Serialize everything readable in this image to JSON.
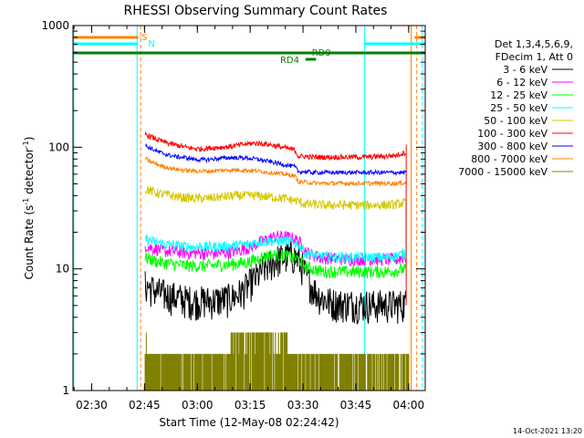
{
  "chart_data": {
    "type": "line",
    "title": "RHESSI Observing Summary Count Rates",
    "xlabel": "Start Time (12-May-08 02:24:42)",
    "ylabel_main": "Count Rate (s",
    "ylabel_sup1": "-1",
    "ylabel_mid": " detector",
    "ylabel_sup2": "-1",
    "ylabel_end": ")",
    "y_scale": "log",
    "ylim": [
      1,
      1000
    ],
    "xlim_minutes": [
      0,
      100
    ],
    "x_ticks": [
      {
        "minute": 5.3,
        "label": "02:30"
      },
      {
        "minute": 20.3,
        "label": "02:45"
      },
      {
        "minute": 35.3,
        "label": "03:00"
      },
      {
        "minute": 50.3,
        "label": "03:15"
      },
      {
        "minute": 65.3,
        "label": "03:30"
      },
      {
        "minute": 80.3,
        "label": "03:45"
      },
      {
        "minute": 95.3,
        "label": "04:00"
      }
    ],
    "y_ticks": [
      {
        "value": 1,
        "label": "1"
      },
      {
        "value": 10,
        "label": "10"
      },
      {
        "value": 100,
        "label": "100"
      },
      {
        "value": 1000,
        "label": "1000"
      }
    ],
    "legend_header": [
      "Det 1,3,4,5,6,9,",
      "FDecim 1, Att 0"
    ],
    "legend_position": "right",
    "series": [
      {
        "name": "3 - 6 keV",
        "color": "#000000",
        "x": [
          20,
          22,
          24,
          26,
          28,
          30,
          32,
          34,
          36,
          38,
          40,
          42,
          44,
          46,
          48,
          50,
          52,
          54,
          56,
          58,
          60,
          62,
          64,
          66,
          68,
          70,
          72,
          74,
          76,
          78,
          80,
          82,
          84,
          86,
          88,
          90,
          92,
          94
        ],
        "values": [
          7.5,
          7,
          6.5,
          6.2,
          6,
          5.8,
          5.6,
          5.5,
          5.5,
          5.5,
          5.5,
          5.6,
          5.7,
          6,
          6.5,
          7.5,
          8.5,
          10,
          11,
          12,
          12.5,
          13,
          12,
          9,
          7,
          6,
          5.5,
          5.3,
          5.2,
          5.2,
          5.2,
          5.2,
          5.1,
          5.1,
          5.1,
          5.1,
          5.1,
          5.2
        ]
      },
      {
        "name": "6 - 12 keV",
        "color": "#ff00ff",
        "x": [
          20,
          22,
          24,
          26,
          28,
          30,
          32,
          34,
          36,
          38,
          40,
          42,
          44,
          46,
          48,
          50,
          52,
          54,
          56,
          58,
          60,
          62,
          64,
          66,
          68,
          70,
          72,
          74,
          76,
          78,
          80,
          82,
          84,
          86,
          88,
          90,
          92,
          94
        ],
        "values": [
          16,
          15,
          14.5,
          14,
          14,
          13.8,
          13.6,
          13.5,
          13.5,
          13.4,
          13.4,
          13.5,
          13.6,
          14,
          14.5,
          15,
          16,
          17,
          18,
          18.5,
          18.5,
          18,
          17,
          14,
          13,
          12.5,
          12.3,
          12.2,
          12.1,
          12,
          12,
          12,
          12,
          12,
          12,
          12,
          12,
          12.5
        ]
      },
      {
        "name": "12 - 25 keV",
        "color": "#00ff00",
        "x": [
          20,
          22,
          24,
          26,
          28,
          30,
          32,
          34,
          36,
          38,
          40,
          42,
          44,
          46,
          48,
          50,
          52,
          54,
          56,
          58,
          60,
          62,
          64,
          66,
          68,
          70,
          72,
          74,
          76,
          78,
          80,
          82,
          84,
          86,
          88,
          90,
          92,
          94
        ],
        "values": [
          12.5,
          12,
          11.5,
          11.2,
          11,
          10.8,
          10.7,
          10.6,
          10.6,
          10.6,
          10.7,
          10.8,
          10.9,
          11,
          11.2,
          11.5,
          12,
          12.5,
          13,
          13,
          13,
          12.5,
          12,
          10.5,
          10,
          9.7,
          9.5,
          9.5,
          9.5,
          9.5,
          9.5,
          9.5,
          9.5,
          9.5,
          9.5,
          9.6,
          9.7,
          10
        ]
      },
      {
        "name": "25 - 50 keV",
        "color": "#00ffff",
        "x": [
          20,
          22,
          24,
          26,
          28,
          30,
          32,
          34,
          36,
          38,
          40,
          42,
          44,
          46,
          48,
          50,
          52,
          54,
          56,
          58,
          60,
          62,
          64,
          66,
          68,
          70,
          72,
          74,
          76,
          78,
          80,
          82,
          84,
          86,
          88,
          90,
          92,
          94
        ],
        "values": [
          18,
          17,
          16.5,
          16,
          15.8,
          15.5,
          15.3,
          15.2,
          15.2,
          15.2,
          15.2,
          15.3,
          15.4,
          15.6,
          15.8,
          16,
          16.5,
          17,
          17,
          17,
          17,
          16.5,
          16,
          13.5,
          13,
          12.8,
          12.6,
          12.5,
          12.5,
          12.5,
          12.5,
          12.5,
          12.5,
          12.5,
          12.5,
          12.6,
          12.8,
          13.5
        ]
      },
      {
        "name": "50 - 100 keV",
        "color": "#d4c800",
        "x": [
          20,
          22,
          24,
          26,
          28,
          30,
          32,
          34,
          36,
          38,
          40,
          42,
          44,
          46,
          48,
          50,
          52,
          54,
          56,
          58,
          60,
          62,
          64,
          66,
          68,
          70,
          72,
          74,
          76,
          78,
          80,
          82,
          84,
          86,
          88,
          90,
          92,
          94
        ],
        "values": [
          46,
          44,
          42,
          41,
          40,
          39,
          38.5,
          38,
          38,
          38,
          38.5,
          39,
          39.5,
          40,
          40,
          40,
          40,
          39.5,
          39,
          38.5,
          38,
          37,
          36,
          34,
          34,
          33.5,
          33.5,
          33.5,
          33.5,
          33.5,
          33.5,
          33.5,
          33.5,
          33.5,
          33.5,
          33.5,
          34,
          35
        ]
      },
      {
        "name": "100 - 300 keV",
        "color": "#ff0000",
        "x": [
          20,
          22,
          24,
          26,
          28,
          30,
          32,
          34,
          36,
          38,
          40,
          42,
          44,
          46,
          48,
          50,
          52,
          54,
          56,
          58,
          60,
          62,
          63,
          64,
          66,
          68,
          70,
          72,
          74,
          76,
          78,
          80,
          82,
          84,
          86,
          88,
          90,
          92,
          94
        ],
        "values": [
          130,
          122,
          115,
          110,
          106,
          103,
          100,
          98,
          97,
          98,
          99,
          100,
          101,
          103,
          105,
          107,
          108,
          107,
          105,
          102,
          99,
          96,
          95,
          84,
          84,
          83,
          83,
          83,
          83,
          83,
          83,
          83,
          83,
          83,
          84,
          84,
          85,
          86,
          90
        ]
      },
      {
        "name": "300 - 800 keV",
        "color": "#0000ff",
        "x": [
          20,
          22,
          24,
          26,
          28,
          30,
          32,
          34,
          36,
          38,
          40,
          42,
          44,
          46,
          48,
          50,
          52,
          54,
          56,
          58,
          60,
          62,
          63,
          64,
          66,
          68,
          70,
          72,
          74,
          76,
          78,
          80,
          82,
          84,
          86,
          88,
          90,
          92,
          94
        ],
        "values": [
          105,
          98,
          92,
          88,
          85,
          83,
          82,
          80,
          79,
          79,
          80,
          81,
          82,
          82,
          82,
          81,
          80,
          78,
          76,
          74,
          72,
          70,
          69,
          63,
          63,
          62,
          62,
          62,
          62,
          62,
          62,
          62,
          62,
          62,
          62,
          62,
          62,
          62,
          62
        ]
      },
      {
        "name": "800 - 7000 keV",
        "color": "#ff8000",
        "x": [
          20,
          22,
          24,
          26,
          28,
          30,
          32,
          34,
          36,
          38,
          40,
          42,
          44,
          46,
          48,
          50,
          52,
          54,
          56,
          58,
          60,
          62,
          63,
          64,
          66,
          68,
          70,
          72,
          74,
          76,
          78,
          80,
          82,
          84,
          86,
          88,
          90,
          92,
          94
        ],
        "values": [
          82,
          76,
          72,
          69,
          67,
          65.5,
          64.5,
          64,
          63.5,
          63.5,
          64,
          64.5,
          65,
          65,
          65,
          64.5,
          64,
          63,
          62,
          61,
          60,
          59,
          58,
          52,
          51.5,
          51,
          50.5,
          50.5,
          50.5,
          50.5,
          50.5,
          50.5,
          50.5,
          50.5,
          50.5,
          50.5,
          50.5,
          50.5,
          51
        ]
      },
      {
        "name": "7000 - 15000 keV",
        "color": "#808000",
        "x": [],
        "values": []
      }
    ],
    "annotations": {
      "flags": [
        {
          "label": "S",
          "color": "#ff8000"
        },
        {
          "label": "N",
          "color": "#00ffff"
        },
        {
          "label": "RD9",
          "color": "#008000"
        },
        {
          "label": "RD4",
          "color": "#008000"
        }
      ]
    },
    "footer_stamp": "14-Oct-2021 13:20"
  }
}
